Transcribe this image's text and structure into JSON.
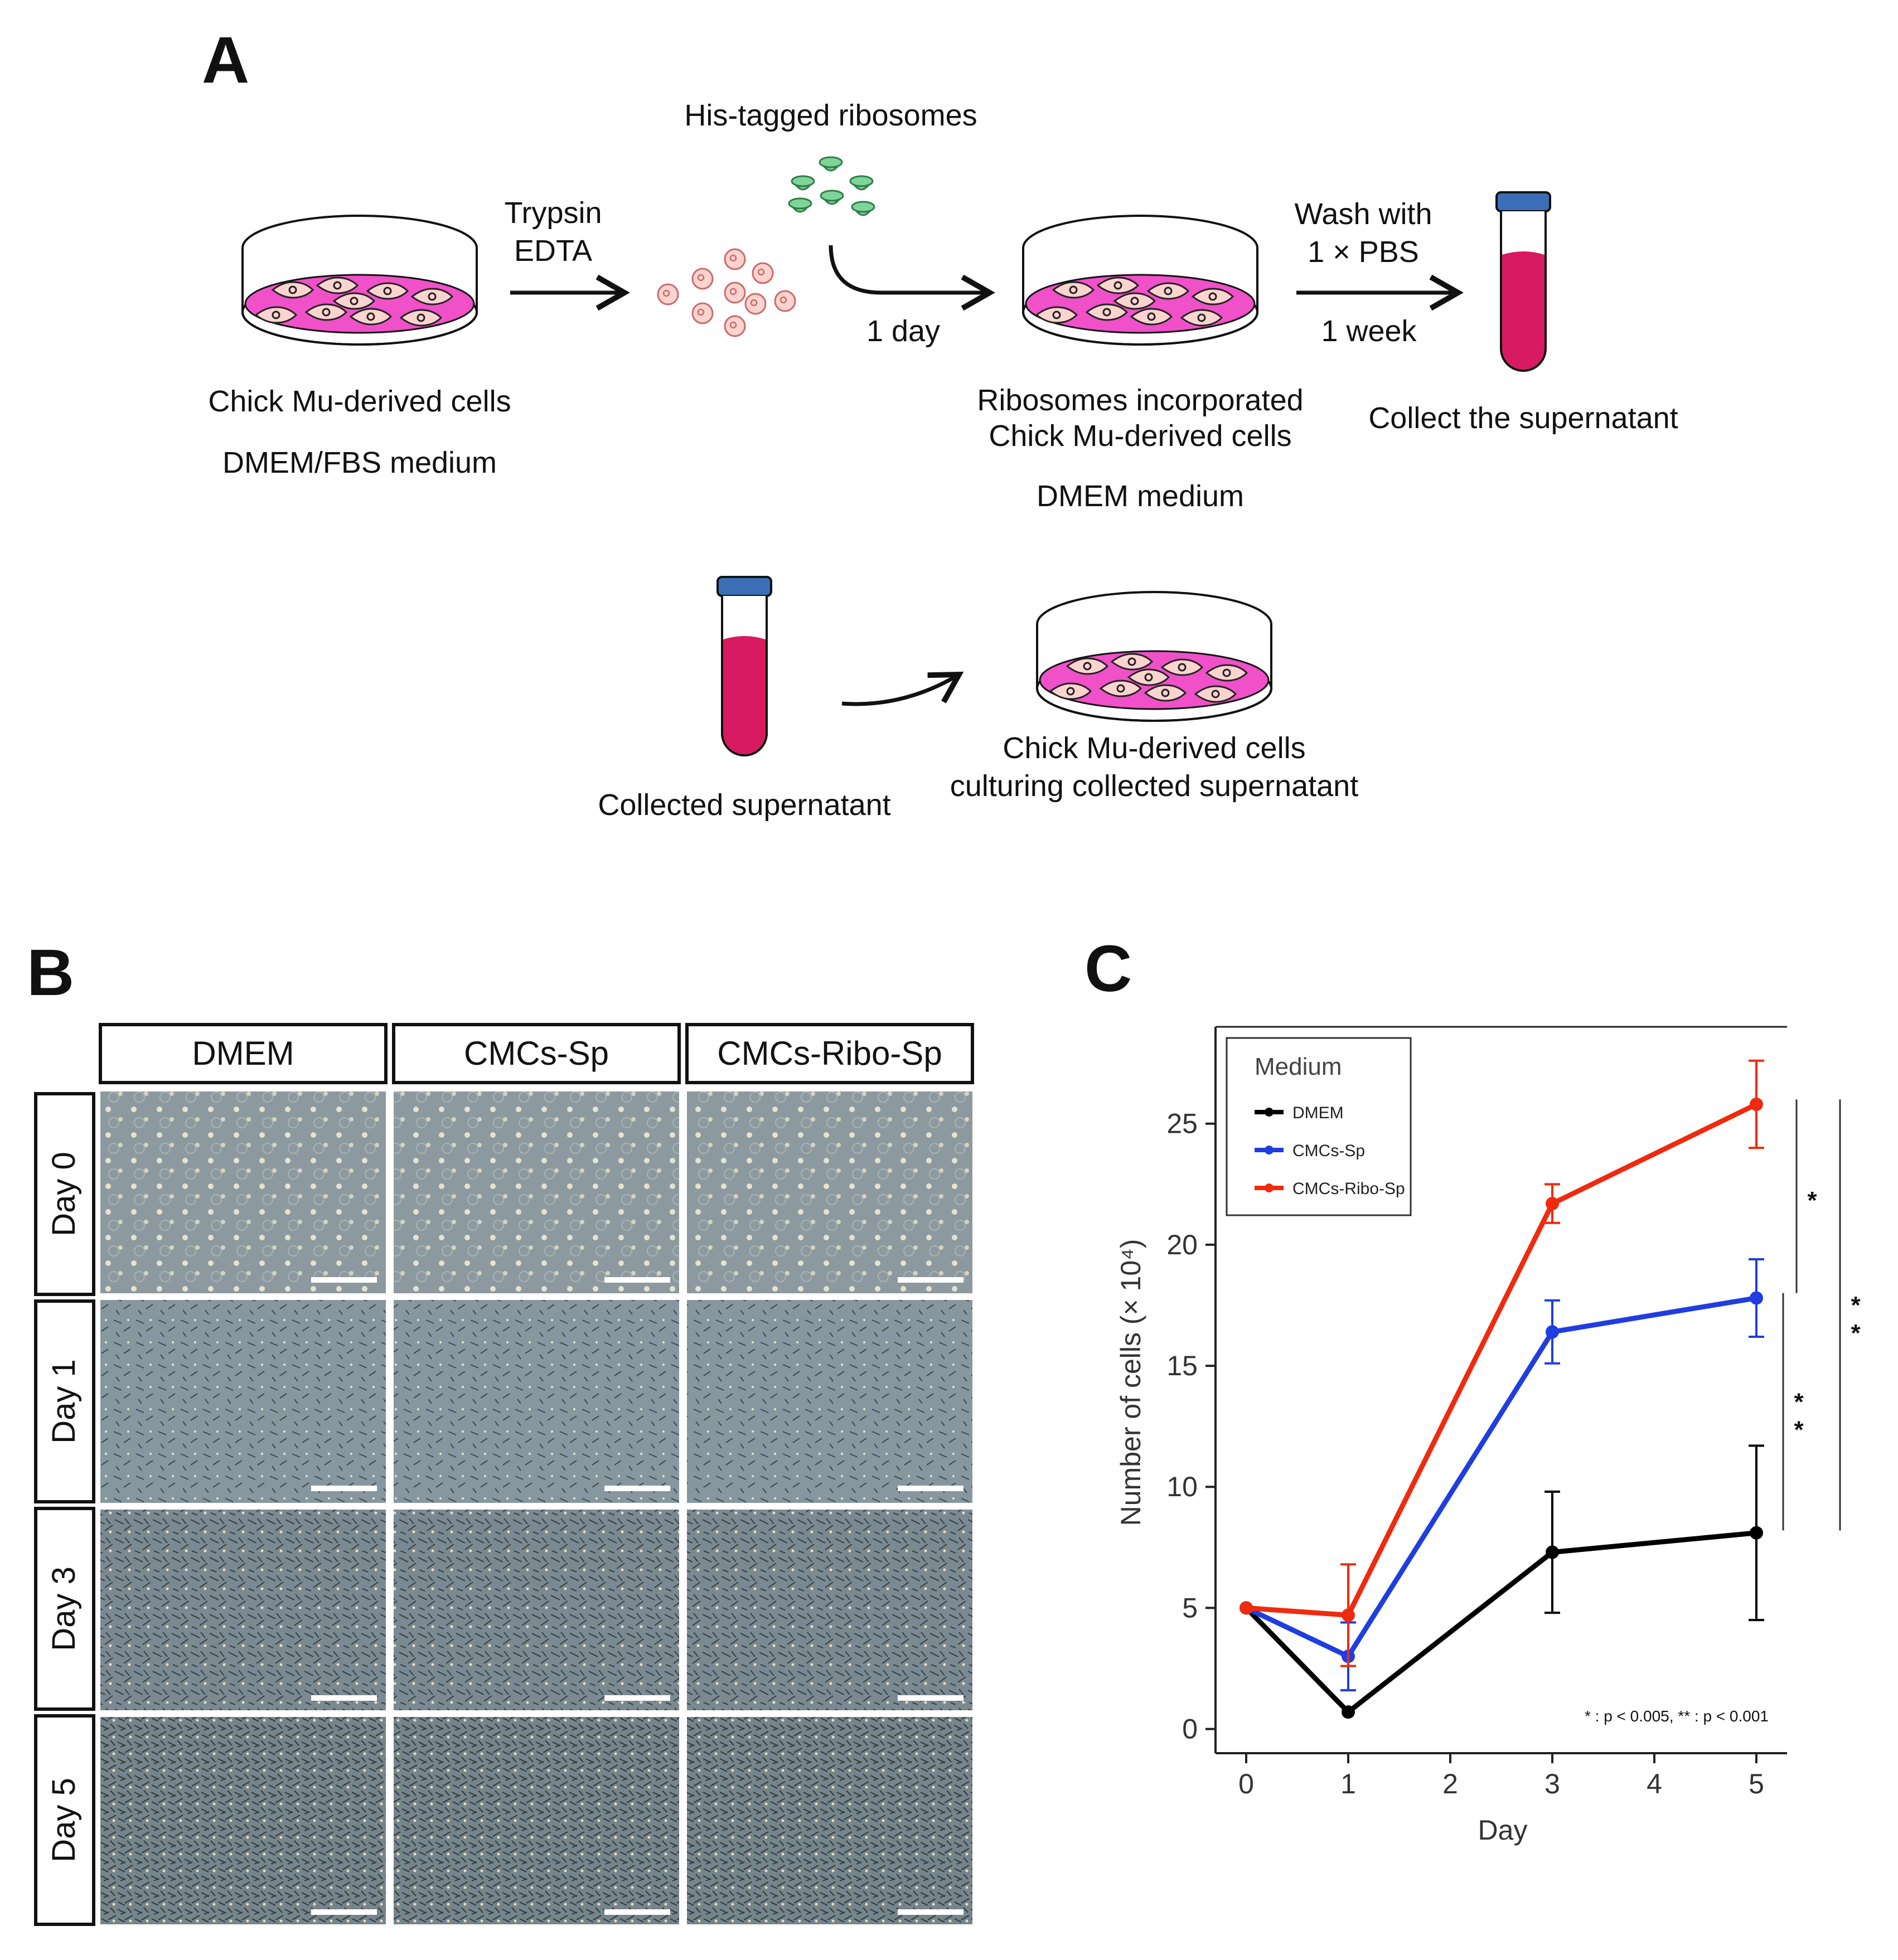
{
  "panel_a": {
    "letter": "A",
    "trypsin": "Trypsin",
    "edta": "EDTA",
    "his_ribosomes": "His-tagged ribosomes",
    "one_day": "1 day",
    "wash_with": "Wash with",
    "pbs": "1 × PBS",
    "one_week": "1 week",
    "chick_cells": "Chick Mu-derived cells",
    "dmem_fbs": "DMEM/FBS medium",
    "ribo_incorporated": "Ribosomes incorporated",
    "ribo_chick": "Chick Mu-derived cells",
    "dmem_medium": "DMEM medium",
    "collect": "Collect the supernatant",
    "collected": "Collected supernatant",
    "culturing_1": "Chick Mu-derived cells",
    "culturing_2": "culturing collected supernatant",
    "colors": {
      "medium": "#f050c8",
      "tube_liquid": "#d81b60",
      "tube_cap": "#3a6fb8",
      "cell": "#fbd3cf",
      "ribosome": "#7fd49a"
    }
  },
  "panel_b": {
    "letter": "B",
    "columns": [
      "DMEM",
      "CMCs-Sp",
      "CMCs-Ribo-Sp"
    ],
    "rows": [
      "Day 0",
      "Day 1",
      "Day 3",
      "Day 5"
    ]
  },
  "panel_c": {
    "letter": "C"
  },
  "chart_data": {
    "type": "line",
    "xlabel": "Day",
    "ylabel": "Number of cells (× 10⁴)",
    "x_ticks": [
      0,
      1,
      2,
      3,
      4,
      5
    ],
    "y_ticks": [
      0,
      5,
      10,
      15,
      20,
      25
    ],
    "xlim": [
      -0.2,
      5.25
    ],
    "ylim": [
      -1,
      29
    ],
    "legend_title": "Medium",
    "legend_position": "top-left",
    "series": [
      {
        "name": "DMEM",
        "color": "#000000",
        "x": [
          0,
          1,
          3,
          5
        ],
        "values": [
          5.0,
          0.7,
          7.3,
          8.1
        ],
        "err": [
          0,
          0,
          2.5,
          3.6
        ]
      },
      {
        "name": "CMCs-Sp",
        "color": "#1f3de0",
        "x": [
          0,
          1,
          3,
          5
        ],
        "values": [
          5.0,
          3.0,
          16.4,
          17.8
        ],
        "err": [
          0,
          1.4,
          1.3,
          1.6
        ]
      },
      {
        "name": "CMCs-Ribo-Sp",
        "color": "#f02a0e",
        "x": [
          0,
          1,
          3,
          5
        ],
        "values": [
          5.0,
          4.7,
          21.7,
          25.8
        ],
        "err": [
          0,
          2.1,
          0.8,
          1.8
        ]
      }
    ],
    "significance": [
      {
        "label": "*",
        "from": 26.0,
        "to": 18.0
      },
      {
        "label": "**",
        "from": 18.0,
        "to": 8.2
      },
      {
        "label": "**",
        "from": 26.0,
        "to": 8.2
      }
    ],
    "note": "* : p < 0.005, ** : p < 0.001"
  }
}
